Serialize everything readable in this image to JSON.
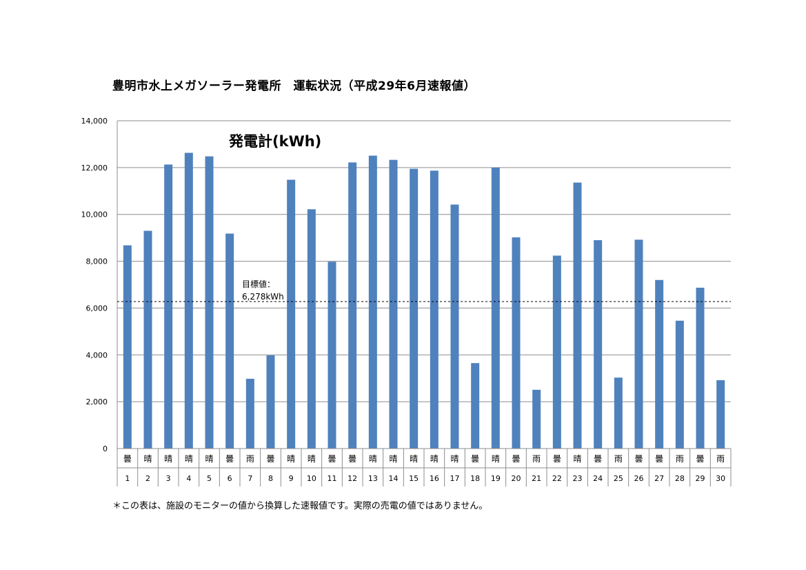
{
  "page": {
    "title": "豊明市水上メガソーラー発電所　運転状況（平成29年6月速報値）",
    "footnote": "＊この表は、施設のモニターの値から換算した速報値です。実際の売電の値ではありません。"
  },
  "chart_data": {
    "type": "bar",
    "title": "発電計(kWh)",
    "ylim": [
      0,
      14000
    ],
    "yticks": [
      0,
      2000,
      4000,
      6000,
      8000,
      10000,
      12000,
      14000
    ],
    "ytick_labels": [
      "0",
      "2,000",
      "4,000",
      "6,000",
      "8,000",
      "10,000",
      "12,000",
      "14,000"
    ],
    "grid": true,
    "bar_color": "#4f81bd",
    "categories": [
      "1",
      "2",
      "3",
      "4",
      "5",
      "6",
      "7",
      "8",
      "9",
      "10",
      "11",
      "12",
      "13",
      "14",
      "15",
      "16",
      "17",
      "18",
      "19",
      "20",
      "21",
      "22",
      "23",
      "24",
      "25",
      "26",
      "27",
      "28",
      "29",
      "30"
    ],
    "weather": [
      "曇",
      "晴",
      "晴",
      "晴",
      "晴",
      "曇",
      "雨",
      "曇",
      "晴",
      "晴",
      "曇",
      "曇",
      "晴",
      "晴",
      "晴",
      "晴",
      "晴",
      "曇",
      "晴",
      "曇",
      "雨",
      "曇",
      "晴",
      "曇",
      "雨",
      "曇",
      "曇",
      "雨",
      "曇",
      "雨"
    ],
    "values": [
      8680,
      9300,
      12130,
      12630,
      12480,
      9180,
      2980,
      3980,
      11480,
      10220,
      7980,
      12220,
      12510,
      12330,
      11950,
      11870,
      10420,
      3650,
      12000,
      9020,
      2510,
      8240,
      11360,
      8900,
      3030,
      8920,
      7200,
      5460,
      6870,
      2920
    ],
    "target": {
      "value": 6278,
      "label_line1": "目標値：",
      "label_line2": "6,278kWh"
    }
  }
}
